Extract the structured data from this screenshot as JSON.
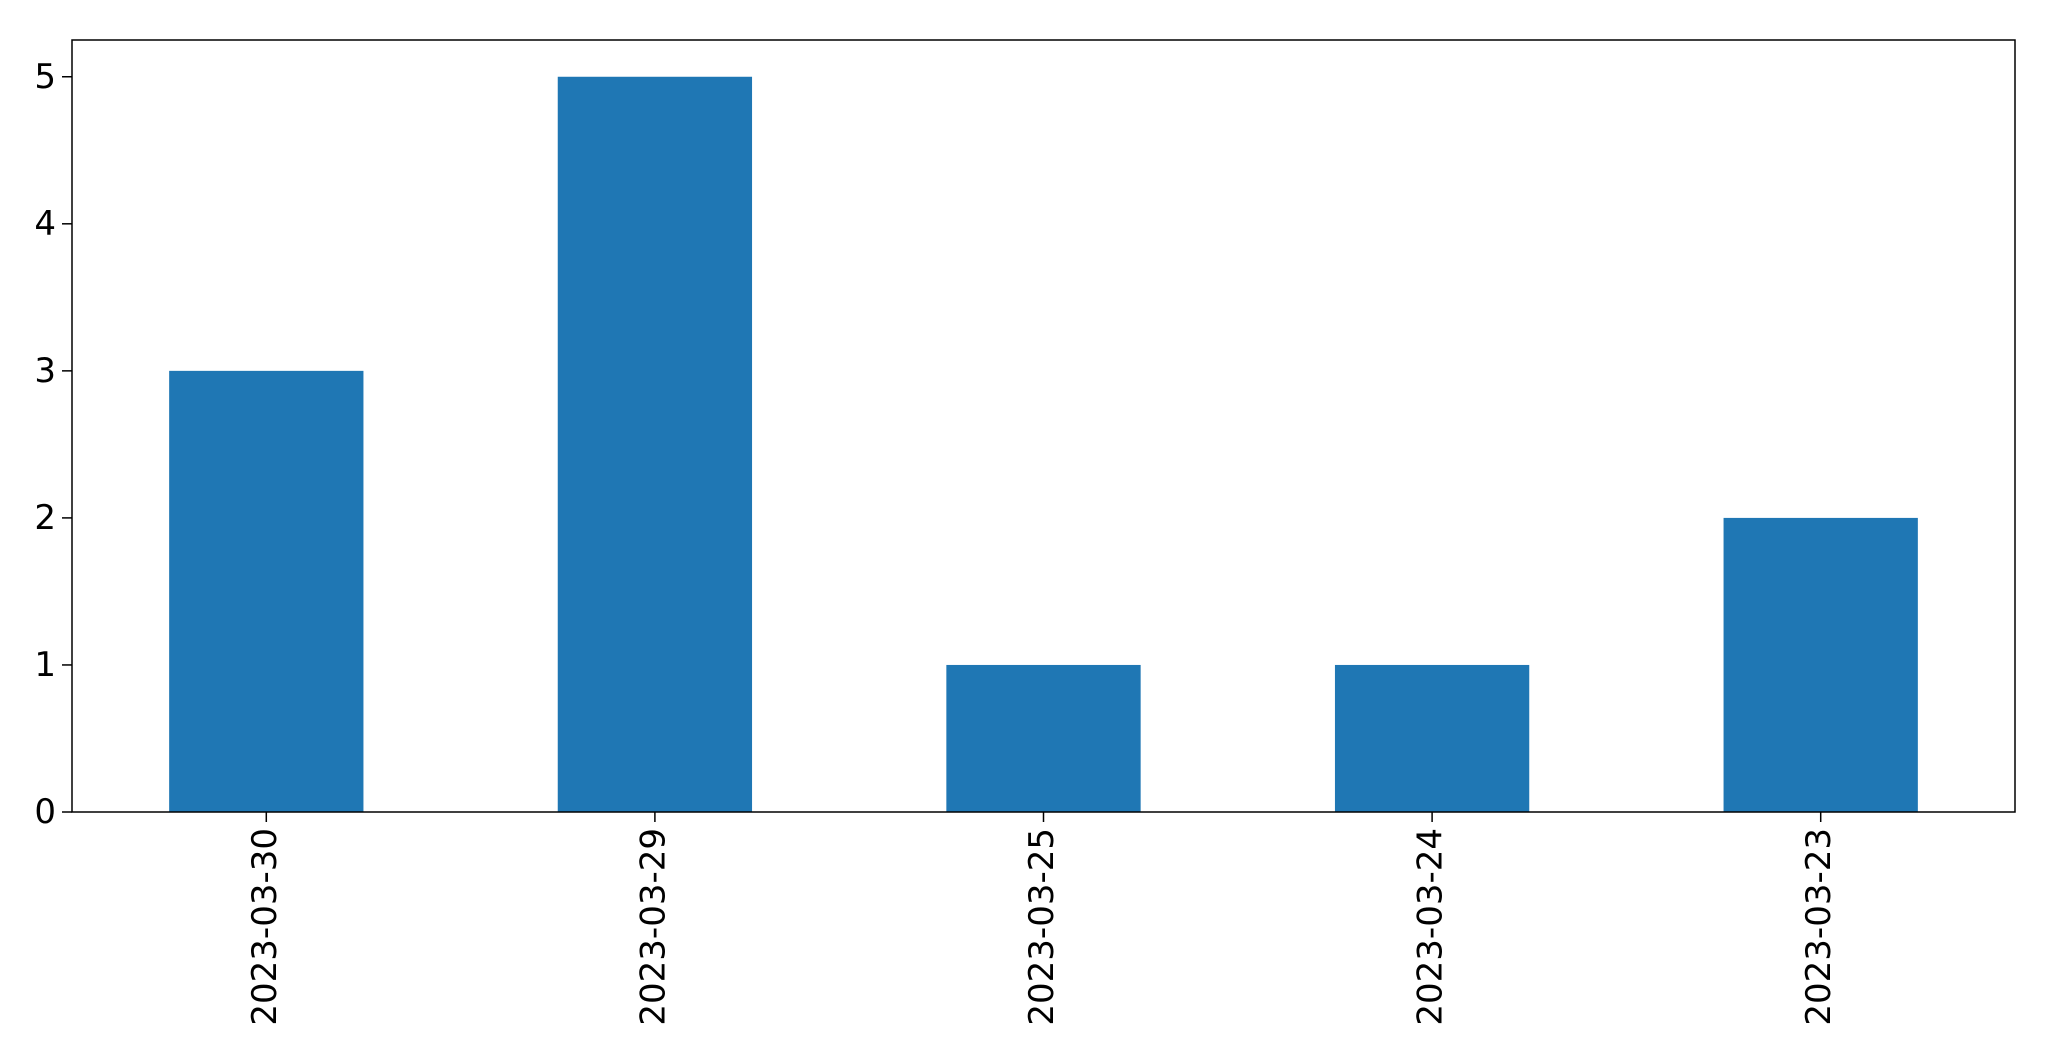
{
  "chart_data": {
    "type": "bar",
    "title": "",
    "xlabel": "",
    "ylabel": "",
    "categories": [
      "2023-03-30",
      "2023-03-29",
      "2023-03-25",
      "2023-03-24",
      "2023-03-23"
    ],
    "values": [
      3,
      5,
      1,
      1,
      2
    ],
    "ylim": [
      0,
      5.25
    ],
    "yticks": [
      "0",
      "1",
      "2",
      "3",
      "4",
      "5"
    ],
    "bar_color": "#1f77b4",
    "grid": false,
    "legend": "none",
    "xtick_rotation": "vertical"
  }
}
